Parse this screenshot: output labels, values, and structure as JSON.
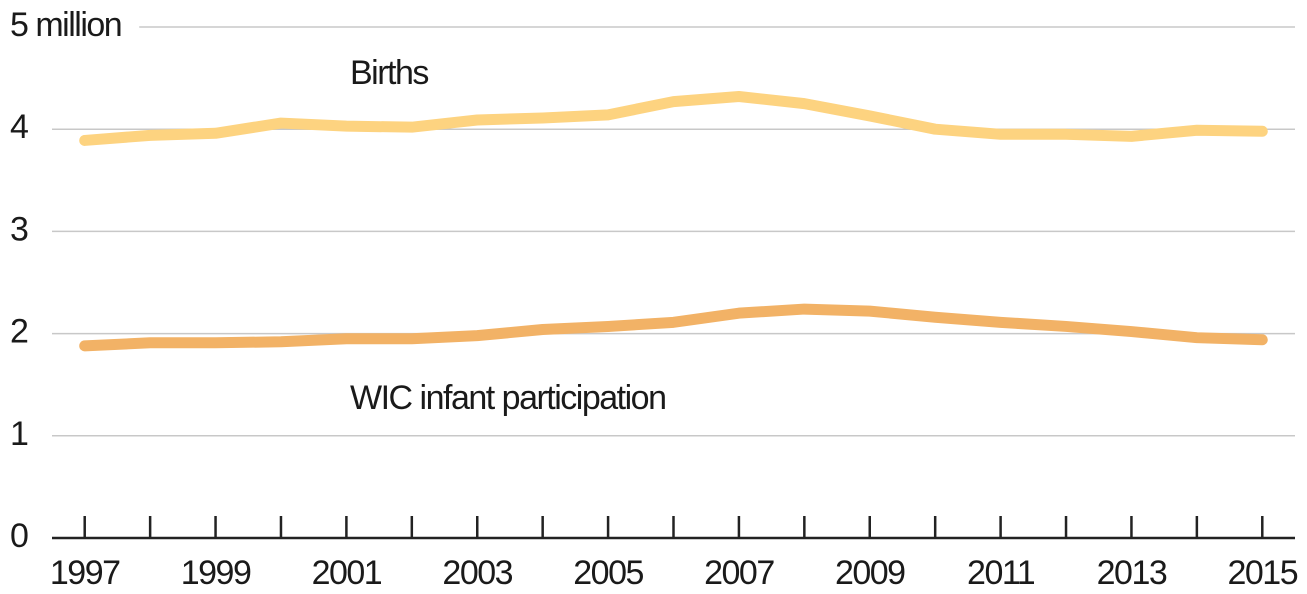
{
  "chart_data": {
    "type": "line",
    "x": [
      1997,
      1998,
      1999,
      2000,
      2001,
      2002,
      2003,
      2004,
      2005,
      2006,
      2007,
      2008,
      2009,
      2010,
      2011,
      2012,
      2013,
      2014,
      2015
    ],
    "series": [
      {
        "name": "Births",
        "color": "#fdd380",
        "values": [
          3.89,
          3.94,
          3.96,
          4.06,
          4.03,
          4.02,
          4.09,
          4.11,
          4.14,
          4.27,
          4.32,
          4.25,
          4.13,
          4.0,
          3.95,
          3.95,
          3.93,
          3.99,
          3.98
        ]
      },
      {
        "name": "WIC infant participation",
        "color": "#f2b266",
        "values": [
          1.88,
          1.91,
          1.91,
          1.92,
          1.95,
          1.95,
          1.98,
          2.04,
          2.07,
          2.11,
          2.2,
          2.24,
          2.22,
          2.16,
          2.11,
          2.07,
          2.02,
          1.96,
          1.94
        ]
      }
    ],
    "xlim": [
      1996.5,
      2015.5
    ],
    "xticks": [
      1997,
      1999,
      2001,
      2003,
      2005,
      2007,
      2009,
      2011,
      2013,
      2015
    ],
    "xticks_minor": [
      1998,
      2000,
      2002,
      2004,
      2006,
      2008,
      2010,
      2012,
      2014
    ],
    "ylim": [
      0,
      5
    ],
    "yticks": [
      0,
      1,
      2,
      3,
      4,
      {
        "value": 5,
        "label": "5 million"
      }
    ],
    "grid": true
  }
}
